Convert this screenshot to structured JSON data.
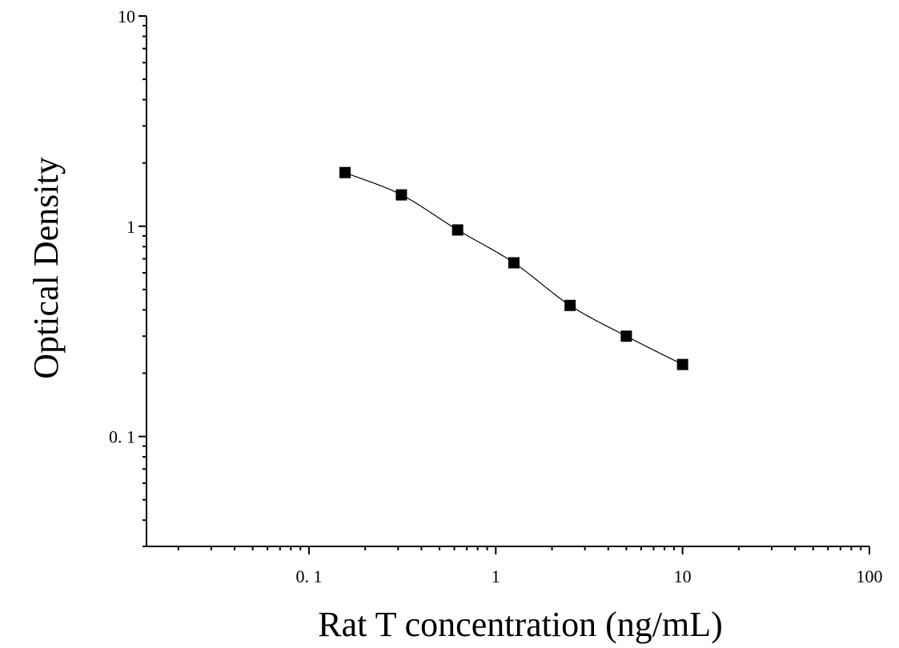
{
  "chart_data": {
    "type": "scatter",
    "xlabel": "Rat T concentration (ng/mL)",
    "ylabel": "Optical Density",
    "x_scale": "log",
    "y_scale": "log",
    "xlim": [
      0.0135,
      100
    ],
    "ylim": [
      0.03,
      10
    ],
    "x_tick_labels": [
      {
        "value": 0.1,
        "label": "0. 1"
      },
      {
        "value": 1,
        "label": "1"
      },
      {
        "value": 10,
        "label": "10"
      },
      {
        "value": 100,
        "label": "100"
      }
    ],
    "y_tick_labels": [
      {
        "value": 0.1,
        "label": "0. 1"
      },
      {
        "value": 1,
        "label": "1"
      },
      {
        "value": 10,
        "label": "10"
      }
    ],
    "series": [
      {
        "marker": "square",
        "color": "#000000",
        "fit_line": true,
        "points": [
          {
            "x": 0.156,
            "y": 1.8
          },
          {
            "x": 0.3125,
            "y": 1.41
          },
          {
            "x": 0.625,
            "y": 0.96
          },
          {
            "x": 1.25,
            "y": 0.67
          },
          {
            "x": 2.5,
            "y": 0.42
          },
          {
            "x": 5,
            "y": 0.3
          },
          {
            "x": 10,
            "y": 0.22
          }
        ]
      }
    ],
    "grid": false,
    "legend": "none"
  }
}
